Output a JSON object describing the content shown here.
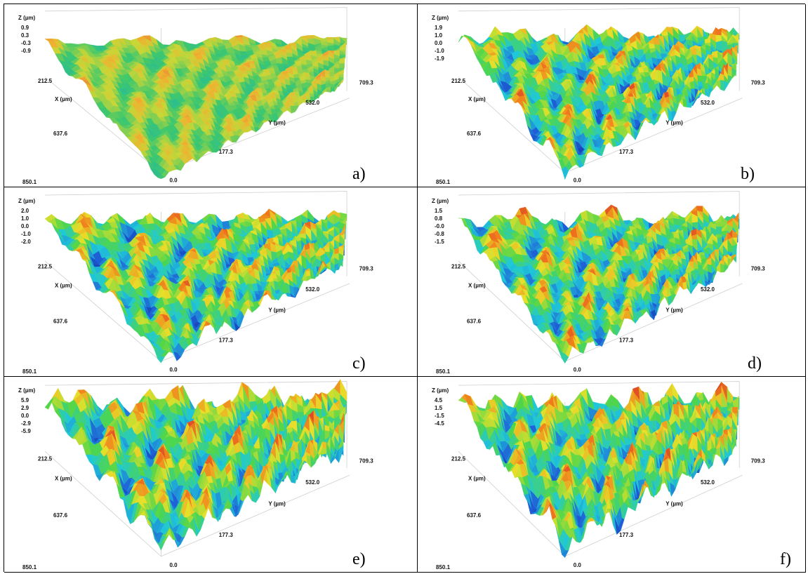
{
  "panels": [
    {
      "id": "a",
      "label": "a)",
      "z_label": "Z (µm)",
      "z_ticks": [
        "0.9",
        "0.3",
        "-0.3",
        "-0.9"
      ],
      "x_label": "X (µm)",
      "x_ticks": [
        "212.5",
        "637.6",
        "850.1"
      ],
      "y_label": "Y (µm)",
      "y_ticks": [
        "709.3",
        "532.0",
        "177.3",
        "0.0"
      ],
      "palette": "smooth-green-yellow"
    },
    {
      "id": "b",
      "label": "b)",
      "z_label": "Z (µm)",
      "z_ticks": [
        "1.9",
        "1.0",
        "0.0",
        "-1.0",
        "-1.9"
      ],
      "x_label": "X (µm)",
      "x_ticks": [
        "212.5",
        "637.6",
        "850.1"
      ],
      "y_label": "Y (µm)",
      "y_ticks": [
        "709.3",
        "532.0",
        "177.3",
        "0.0"
      ],
      "palette": "rainbow"
    },
    {
      "id": "c",
      "label": "c)",
      "z_label": "Z (µm)",
      "z_ticks": [
        "2.0",
        "1.0",
        "0.0",
        "-1.0",
        "-2.0"
      ],
      "x_label": "X (µm)",
      "x_ticks": [
        "212.5",
        "637.6",
        "850.1"
      ],
      "y_label": "Y (µm)",
      "y_ticks": [
        "709.3",
        "532.0",
        "177.3",
        "0.0"
      ],
      "palette": "rainbow"
    },
    {
      "id": "d",
      "label": "d)",
      "z_label": "Z (µm)",
      "z_ticks": [
        "1.5",
        "0.8",
        "-0.0",
        "-0.8",
        "-1.5"
      ],
      "x_label": "X (µm)",
      "x_ticks": [
        "212.5",
        "637.6",
        "850.1"
      ],
      "y_label": "Y (µm)",
      "y_ticks": [
        "709.3",
        "532.0",
        "177.3",
        "0.0"
      ],
      "palette": "rainbow"
    },
    {
      "id": "e",
      "label": "e)",
      "z_label": "Z (µm)",
      "z_ticks": [
        "5.9",
        "2.9",
        "0.0",
        "-2.9",
        "-5.9"
      ],
      "x_label": "X (µm)",
      "x_ticks": [
        "212.5",
        "637.6",
        "850.1"
      ],
      "y_label": "Y (µm)",
      "y_ticks": [
        "709.3",
        "532.0",
        "177.3",
        "0.0"
      ],
      "palette": "rainbow-peaks"
    },
    {
      "id": "f",
      "label": "f)",
      "z_label": "Z (µm)",
      "z_ticks": [
        "4.5",
        "1.5",
        "-1.5",
        "-4.5"
      ],
      "x_label": "X (µm)",
      "x_ticks": [
        "212.5",
        "637.6",
        "850.1"
      ],
      "y_label": "Y (µm)",
      "y_ticks": [
        "709.3",
        "532.0",
        "177.3",
        "0.0"
      ],
      "palette": "rainbow-peaks"
    }
  ]
}
